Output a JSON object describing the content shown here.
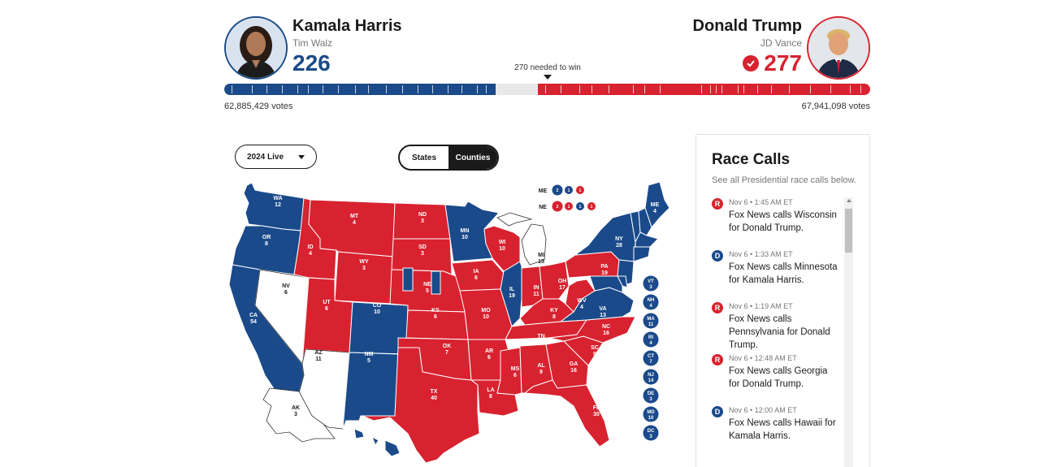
{
  "colors": {
    "dem": "#1a4a8a",
    "rep": "#d8222f",
    "neutral": "#ffffff"
  },
  "header": {
    "dem": {
      "name": "Kamala Harris",
      "running_mate": "Tim Walz",
      "electoral_votes": "226",
      "popular_votes": "62,885,429 votes",
      "photo_icon": "portrait"
    },
    "rep": {
      "name": "Donald Trump",
      "running_mate": "JD Vance",
      "electoral_votes": "277",
      "popular_votes": "67,941,098 votes",
      "winner_icon": "checkmark-icon",
      "photo_icon": "portrait"
    },
    "needed_label": "270 needed to win",
    "total_votes": 538,
    "dem_share": 226,
    "rep_share": 277
  },
  "controls": {
    "year_select": "2024 Live",
    "view_options": [
      "States",
      "Counties"
    ],
    "view_selected": "States"
  },
  "map": {
    "states": [
      {
        "abbr": "WA",
        "ev": "12",
        "party": "D"
      },
      {
        "abbr": "OR",
        "ev": "8",
        "party": "D"
      },
      {
        "abbr": "CA",
        "ev": "54",
        "party": "D"
      },
      {
        "abbr": "NV",
        "ev": "6",
        "party": "N"
      },
      {
        "abbr": "ID",
        "ev": "4",
        "party": "R"
      },
      {
        "abbr": "MT",
        "ev": "4",
        "party": "R"
      },
      {
        "abbr": "WY",
        "ev": "3",
        "party": "R"
      },
      {
        "abbr": "UT",
        "ev": "6",
        "party": "R"
      },
      {
        "abbr": "AZ",
        "ev": "11",
        "party": "N"
      },
      {
        "abbr": "CO",
        "ev": "10",
        "party": "D"
      },
      {
        "abbr": "NM",
        "ev": "5",
        "party": "D"
      },
      {
        "abbr": "ND",
        "ev": "3",
        "party": "R"
      },
      {
        "abbr": "SD",
        "ev": "3",
        "party": "R"
      },
      {
        "abbr": "NE",
        "ev": "5",
        "party": "R"
      },
      {
        "abbr": "KS",
        "ev": "6",
        "party": "R"
      },
      {
        "abbr": "OK",
        "ev": "7",
        "party": "R"
      },
      {
        "abbr": "TX",
        "ev": "40",
        "party": "R"
      },
      {
        "abbr": "MN",
        "ev": "10",
        "party": "D"
      },
      {
        "abbr": "IA",
        "ev": "6",
        "party": "R"
      },
      {
        "abbr": "MO",
        "ev": "10",
        "party": "R"
      },
      {
        "abbr": "AR",
        "ev": "6",
        "party": "R"
      },
      {
        "abbr": "LA",
        "ev": "8",
        "party": "R"
      },
      {
        "abbr": "WI",
        "ev": "10",
        "party": "R"
      },
      {
        "abbr": "IL",
        "ev": "19",
        "party": "D"
      },
      {
        "abbr": "MI",
        "ev": "15",
        "party": "N"
      },
      {
        "abbr": "IN",
        "ev": "11",
        "party": "R"
      },
      {
        "abbr": "OH",
        "ev": "17",
        "party": "R"
      },
      {
        "abbr": "KY",
        "ev": "8",
        "party": "R"
      },
      {
        "abbr": "TN",
        "ev": "11",
        "party": "R"
      },
      {
        "abbr": "MS",
        "ev": "6",
        "party": "R"
      },
      {
        "abbr": "AL",
        "ev": "9",
        "party": "R"
      },
      {
        "abbr": "GA",
        "ev": "16",
        "party": "R"
      },
      {
        "abbr": "FL",
        "ev": "30",
        "party": "R"
      },
      {
        "abbr": "SC",
        "ev": "9",
        "party": "R"
      },
      {
        "abbr": "NC",
        "ev": "16",
        "party": "R"
      },
      {
        "abbr": "VA",
        "ev": "13",
        "party": "D"
      },
      {
        "abbr": "WV",
        "ev": "4",
        "party": "R"
      },
      {
        "abbr": "PA",
        "ev": "19",
        "party": "R"
      },
      {
        "abbr": "NY",
        "ev": "28",
        "party": "D"
      },
      {
        "abbr": "ME",
        "ev": "4",
        "party": "D"
      },
      {
        "abbr": "AK",
        "ev": "3",
        "party": "N"
      },
      {
        "abbr": "HI",
        "ev": "",
        "party": "D"
      }
    ],
    "small_states": [
      {
        "abbr": "VT",
        "ev": "3"
      },
      {
        "abbr": "NH",
        "ev": "4"
      },
      {
        "abbr": "MA",
        "ev": "11"
      },
      {
        "abbr": "RI",
        "ev": "4"
      },
      {
        "abbr": "CT",
        "ev": "7"
      },
      {
        "abbr": "NJ",
        "ev": "14"
      },
      {
        "abbr": "DE",
        "ev": "3"
      },
      {
        "abbr": "MD",
        "ev": "10"
      },
      {
        "abbr": "DC",
        "ev": "3"
      }
    ],
    "districts": {
      "ME": {
        "label": "ME",
        "dots": [
          {
            "v": "2",
            "p": "D"
          },
          {
            "v": "1",
            "p": "D"
          },
          {
            "v": "1",
            "p": "R"
          }
        ]
      },
      "NE": {
        "label": "NE",
        "dots": [
          {
            "v": "2",
            "p": "R"
          },
          {
            "v": "1",
            "p": "R"
          },
          {
            "v": "1",
            "p": "D"
          },
          {
            "v": "1",
            "p": "R"
          }
        ]
      }
    }
  },
  "race_calls": {
    "title": "Race Calls",
    "subtitle": "See all Presidential race calls below.",
    "items": [
      {
        "party": "R",
        "time": "Nov 6 • 1:45 AM ET",
        "text": "Fox News calls Wisconsin for Donald Trump."
      },
      {
        "party": "D",
        "time": "Nov 6 • 1:33 AM ET",
        "text": "Fox News calls Minnesota for Kamala Harris."
      },
      {
        "party": "R",
        "time": "Nov 6 • 1:19 AM ET",
        "text": "Fox News calls Pennsylvania for Donald Trump."
      },
      {
        "party": "R",
        "time": "Nov 6 • 12:48 AM ET",
        "text": "Fox News calls Georgia for Donald Trump."
      },
      {
        "party": "D",
        "time": "Nov 6 • 12:00 AM ET",
        "text": "Fox News calls Hawaii for Kamala Harris."
      }
    ]
  }
}
